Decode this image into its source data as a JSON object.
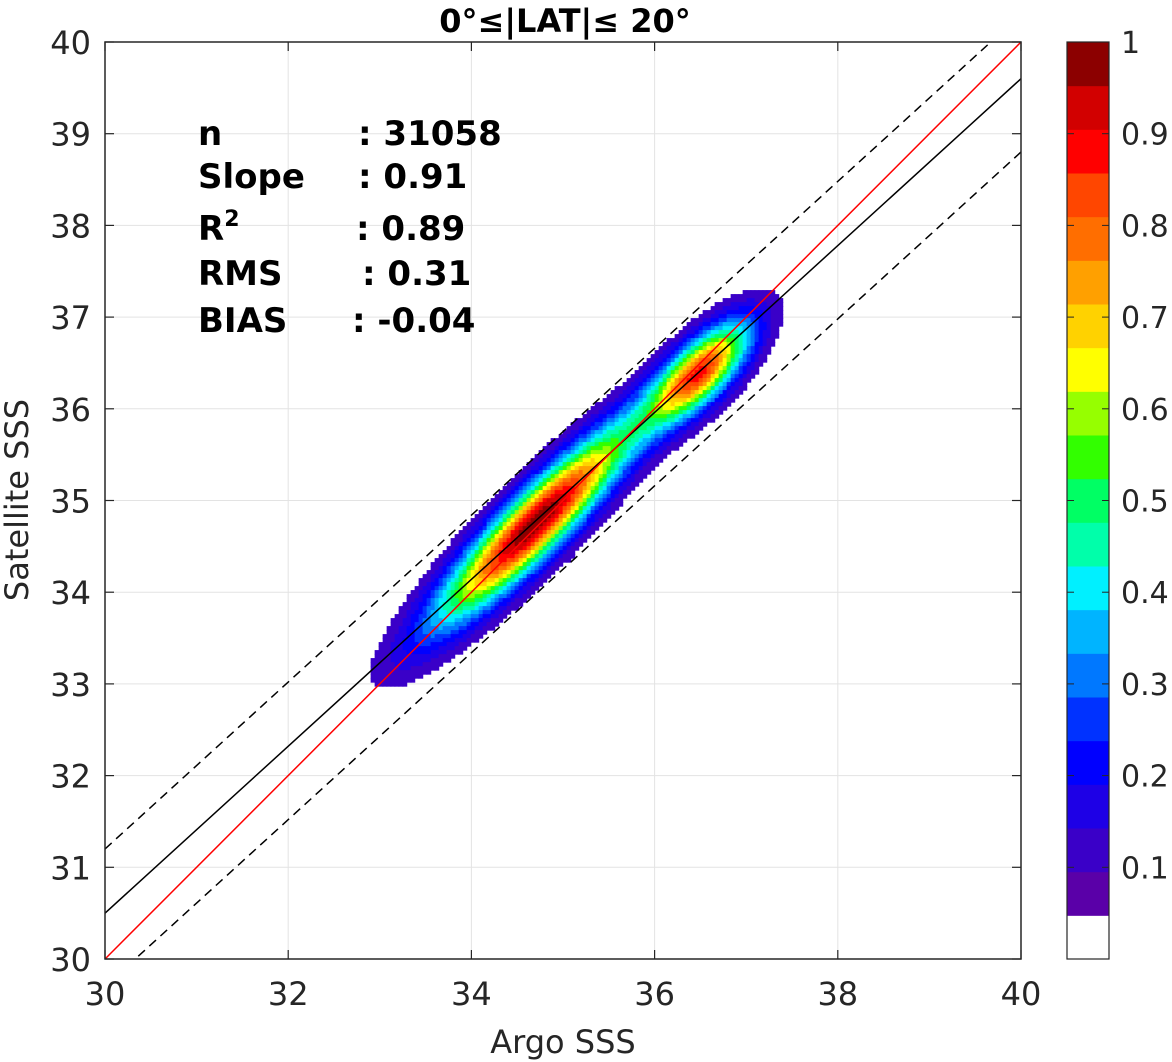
{
  "chart_data": {
    "type": "heatmap",
    "title": "0°≤|LAT|≤ 20°",
    "xlabel": "Argo SSS",
    "ylabel": "Satellite SSS",
    "xlim": [
      30,
      40
    ],
    "ylim": [
      30,
      40
    ],
    "xticks": [
      "30",
      "32",
      "34",
      "36",
      "38",
      "40"
    ],
    "yticks": [
      "30",
      "31",
      "32",
      "33",
      "34",
      "35",
      "36",
      "37",
      "38",
      "39",
      "40"
    ],
    "grid": true,
    "stats": [
      {
        "label": "n",
        "value": ": 31058"
      },
      {
        "label": "Slope",
        "value": ": 0.91"
      },
      {
        "label": "R",
        "sup": "2",
        "value": ": 0.89"
      },
      {
        "label": "RMS",
        "value": ": 0.31"
      },
      {
        "label": "BIAS",
        "value": ": -0.04"
      }
    ],
    "lines": {
      "one_to_one": {
        "color": "#ff0000",
        "slope": 1.0,
        "intercept": 0.0
      },
      "regression": {
        "color": "#000000",
        "slope": 0.91,
        "intercept": 3.2
      },
      "envelope_upper": {
        "color": "#000000",
        "style": "dashed",
        "slope": 0.91,
        "intercept": 3.9
      },
      "envelope_lower": {
        "color": "#000000",
        "style": "dashed",
        "slope": 0.91,
        "intercept": 2.4
      }
    },
    "density_peaks": [
      {
        "x": 34.7,
        "y": 34.75,
        "value": 1.0
      },
      {
        "x": 36.5,
        "y": 36.4,
        "value": 0.82
      }
    ],
    "colorbar": {
      "ticks": [
        "0.1",
        "0.2",
        "0.3",
        "0.4",
        "0.5",
        "0.6",
        "0.7",
        "0.8",
        "0.9",
        "1"
      ],
      "colors": [
        "#ffffff",
        "#5a00a8",
        "#3a00c8",
        "#1e00e6",
        "#0000ff",
        "#0032ff",
        "#0078ff",
        "#00b4ff",
        "#00f0ff",
        "#00ffaa",
        "#00ff64",
        "#32ff00",
        "#96ff00",
        "#ffff00",
        "#ffd200",
        "#ffa000",
        "#ff6e00",
        "#ff4600",
        "#ff0000",
        "#d20000",
        "#8c0000"
      ]
    }
  }
}
